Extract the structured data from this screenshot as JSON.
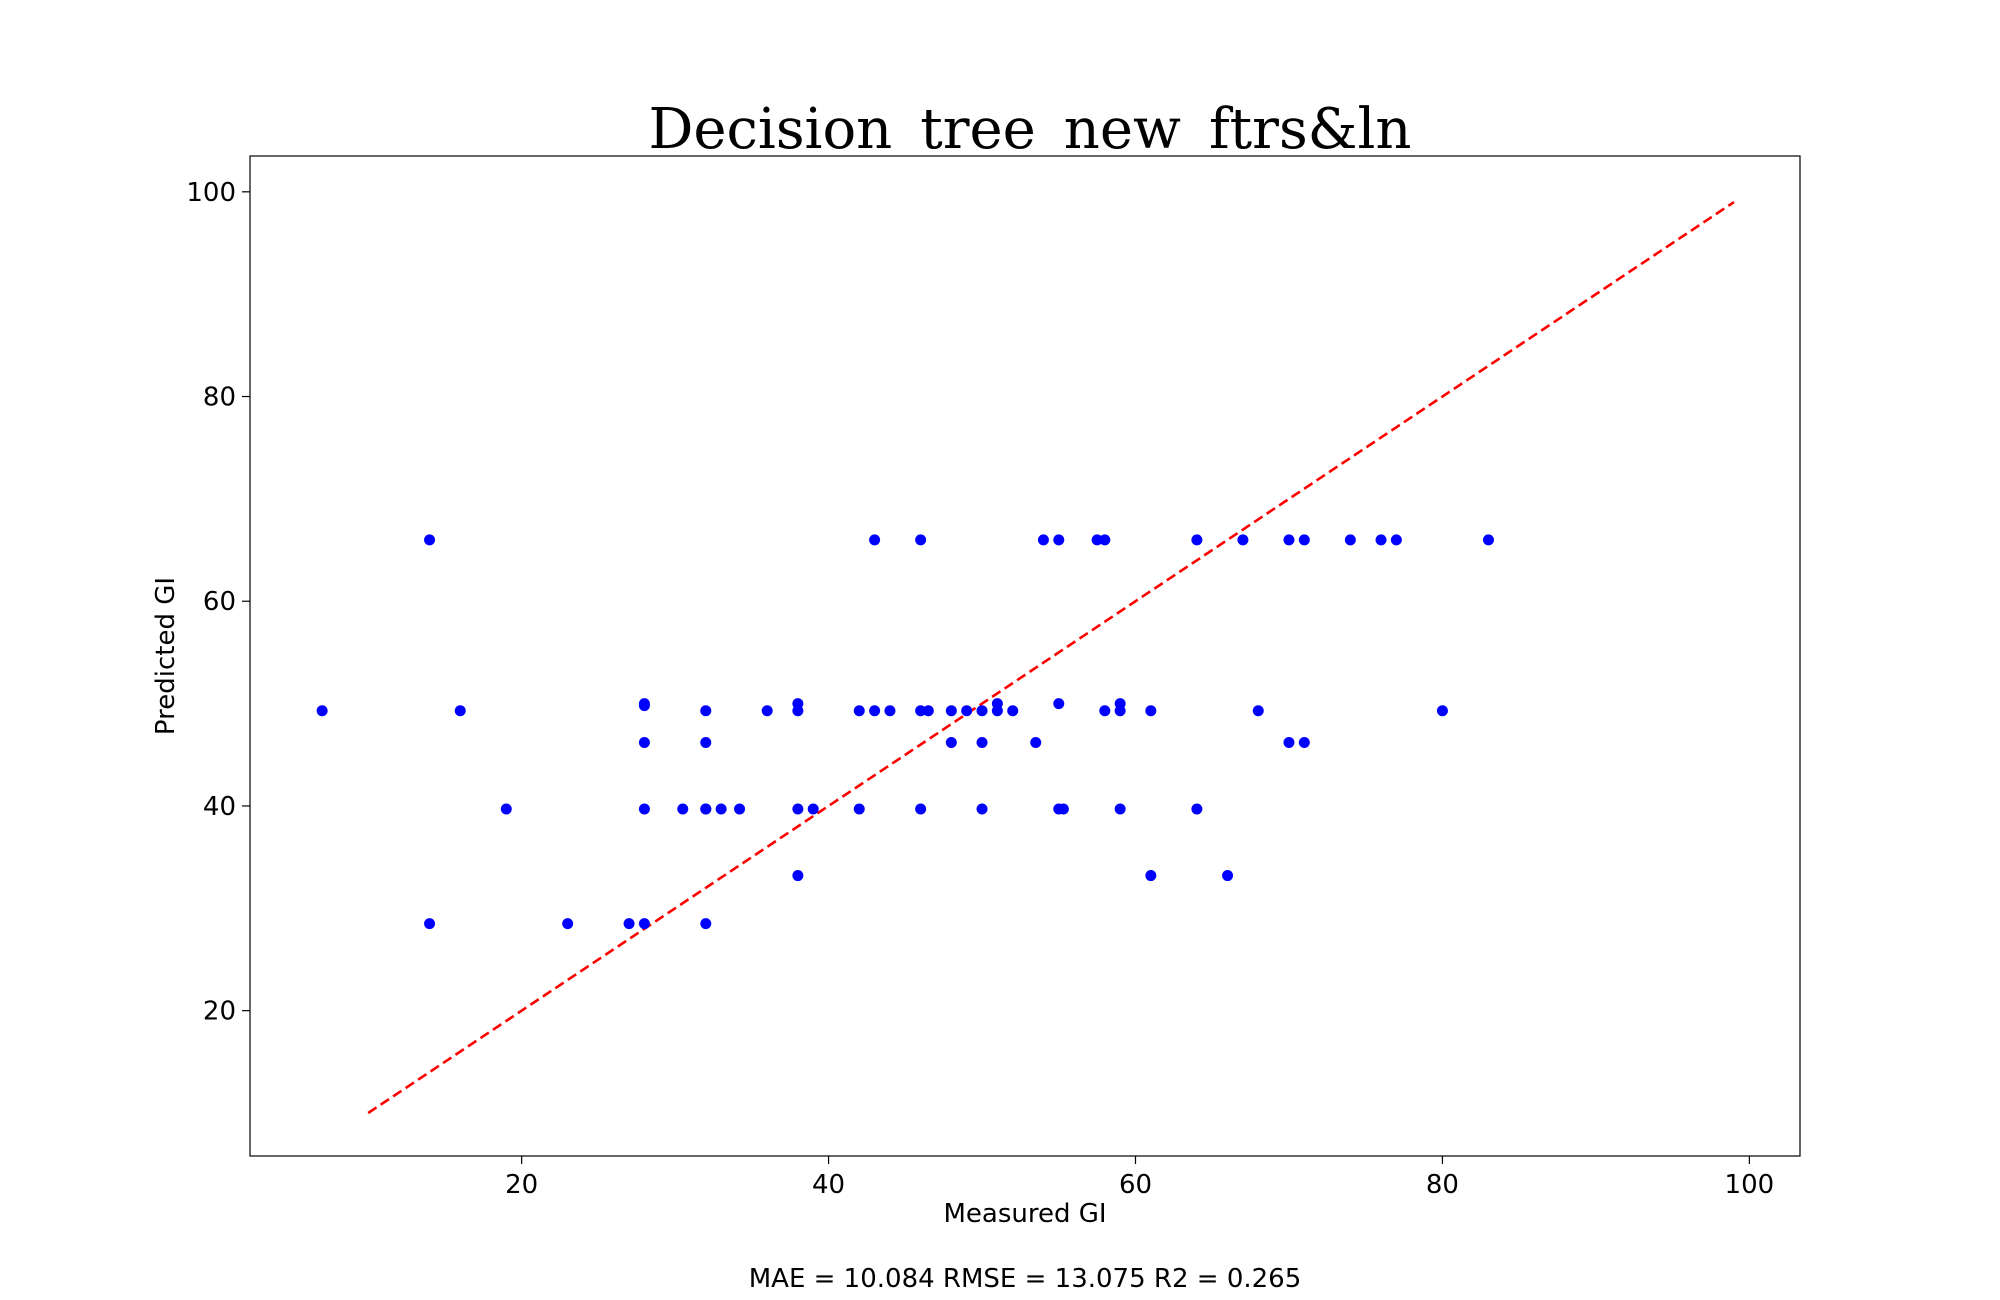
{
  "chart_data": {
    "type": "scatter",
    "title": "Decision_tree_new_ftrs&ln",
    "xlabel": "Measured GI",
    "ylabel": "Predicted GI",
    "xlim": [
      2.3,
      103.3
    ],
    "ylim": [
      5.8,
      103.5
    ],
    "xticks": [
      20,
      40,
      60,
      80,
      100
    ],
    "yticks": [
      20,
      40,
      60,
      80,
      100
    ],
    "grid": false,
    "metrics_text": "MAE = 10.084 RMSE = 13.075 R2 = 0.265",
    "colors": {
      "points": "#0000ff",
      "reference_line": "#ff0000"
    },
    "reference_line": {
      "x": [
        10,
        99
      ],
      "y": [
        10,
        99
      ],
      "style": "dashed"
    },
    "series": [
      {
        "points": [
          [
            7,
            49.3
          ],
          [
            14,
            66
          ],
          [
            14,
            28.5
          ],
          [
            16,
            49.3
          ],
          [
            19,
            39.7
          ],
          [
            23,
            28.5
          ],
          [
            27,
            28.5
          ],
          [
            28,
            28.5
          ],
          [
            28,
            49.8
          ],
          [
            28,
            50
          ],
          [
            28,
            46.2
          ],
          [
            28,
            39.7
          ],
          [
            30.5,
            39.7
          ],
          [
            32,
            49.3
          ],
          [
            32,
            46.2
          ],
          [
            32,
            39.7
          ],
          [
            32,
            39.7
          ],
          [
            32,
            28.5
          ],
          [
            33,
            39.7
          ],
          [
            34.2,
            39.7
          ],
          [
            36,
            49.3
          ],
          [
            38,
            49.3
          ],
          [
            38,
            50
          ],
          [
            38,
            39.7
          ],
          [
            38,
            33.2
          ],
          [
            39,
            39.7
          ],
          [
            42,
            49.3
          ],
          [
            42,
            39.7
          ],
          [
            43,
            66
          ],
          [
            43,
            49.3
          ],
          [
            44,
            49.3
          ],
          [
            46,
            66
          ],
          [
            46,
            49.3
          ],
          [
            46.5,
            49.3
          ],
          [
            46,
            39.7
          ],
          [
            48,
            49.3
          ],
          [
            48,
            46.2
          ],
          [
            49,
            49.3
          ],
          [
            50,
            49.3
          ],
          [
            50,
            46.2
          ],
          [
            50,
            39.7
          ],
          [
            51,
            49.3
          ],
          [
            51,
            50
          ],
          [
            52,
            49.3
          ],
          [
            53.5,
            46.2
          ],
          [
            54,
            66
          ],
          [
            55,
            66
          ],
          [
            55,
            50
          ],
          [
            55,
            39.7
          ],
          [
            55.3,
            39.7
          ],
          [
            57.5,
            66
          ],
          [
            58,
            66
          ],
          [
            58,
            49.3
          ],
          [
            59,
            49.3
          ],
          [
            59,
            50
          ],
          [
            59,
            39.7
          ],
          [
            61,
            49.3
          ],
          [
            61,
            33.2
          ],
          [
            64,
            66
          ],
          [
            64,
            39.7
          ],
          [
            66,
            33.2
          ],
          [
            67,
            66
          ],
          [
            68,
            49.3
          ],
          [
            70,
            66
          ],
          [
            70,
            46.2
          ],
          [
            71,
            66
          ],
          [
            71,
            46.2
          ],
          [
            74,
            66
          ],
          [
            76,
            66
          ],
          [
            77,
            66
          ],
          [
            80,
            49.3
          ],
          [
            83,
            66
          ]
        ]
      }
    ]
  }
}
